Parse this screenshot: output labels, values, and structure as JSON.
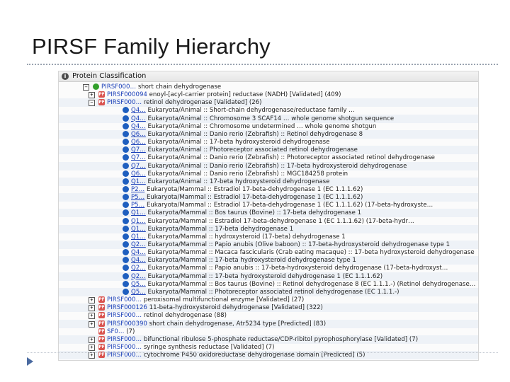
{
  "slide": {
    "title": "PIRSF Family Hierarchy"
  },
  "panel": {
    "header": "Protein Classification"
  },
  "rows": [
    {
      "indent": 1,
      "toggle": "−",
      "badge": "green",
      "badge_text": "",
      "id": "PIRSF000…",
      "text": " short chain dehydrogenase",
      "shaded": false
    },
    {
      "indent": 2,
      "toggle": "+",
      "badge": "pf",
      "badge_text": "PF",
      "id": "PIRSF000094",
      "text": " enoyl-[acyl-carrier protein] reductase (NADH) [Validated] (409)",
      "shaded": false
    },
    {
      "indent": 2,
      "toggle": "−",
      "badge": "pf",
      "badge_text": "PF",
      "id": "PIRSF000…",
      "text": " retinol dehydrogenase [Validated] (26)",
      "shaded": true
    },
    {
      "indent": 3,
      "toggle": "",
      "badge": "sp",
      "badge_text": "",
      "id": "Q4…",
      "text": " Eukaryota/Animal :: Short-chain dehydrogenase/reductase family …",
      "shaded": false
    },
    {
      "indent": 3,
      "toggle": "",
      "badge": "sp",
      "badge_text": "",
      "id": "Q4…",
      "text": " Eukaryota/Animal :: Chromosome 3 SCAF14 … whole genome shotgun sequence",
      "shaded": true
    },
    {
      "indent": 3,
      "toggle": "",
      "badge": "sp",
      "badge_text": "",
      "id": "Q4…",
      "text": " Eukaryota/Animal :: Chromosome undetermined … whole genome shotgun",
      "shaded": false
    },
    {
      "indent": 3,
      "toggle": "",
      "badge": "sp",
      "badge_text": "",
      "id": "Q6…",
      "text": " Eukaryota/Animal :: Danio rerio (Zebrafish) :: Retinol dehydrogenase 8",
      "shaded": true
    },
    {
      "indent": 3,
      "toggle": "",
      "badge": "sp",
      "badge_text": "",
      "id": "Q6…",
      "text": " Eukaryota/Animal :: 17-beta hydroxysteroid dehydrogenase",
      "shaded": false
    },
    {
      "indent": 3,
      "toggle": "",
      "badge": "sp",
      "badge_text": "",
      "id": "Q7…",
      "text": " Eukaryota/Animal :: Photoreceptor associated retinol dehydrogenase",
      "shaded": true
    },
    {
      "indent": 3,
      "toggle": "",
      "badge": "sp",
      "badge_text": "",
      "id": "Q7…",
      "text": " Eukaryota/Animal :: Danio rerio (Zebrafish) :: Photoreceptor associated retinol dehydrogenase",
      "shaded": false
    },
    {
      "indent": 3,
      "toggle": "",
      "badge": "sp",
      "badge_text": "",
      "id": "Q7…",
      "text": " Eukaryota/Animal :: Danio rerio (Zebrafish) :: 17-beta hydroxysteroid dehydrogenase",
      "shaded": true
    },
    {
      "indent": 3,
      "toggle": "",
      "badge": "sp",
      "badge_text": "",
      "id": "Q6…",
      "text": " Eukaryota/Animal :: Danio rerio (Zebrafish) :: MGC184258 protein",
      "shaded": false
    },
    {
      "indent": 3,
      "toggle": "",
      "badge": "sp",
      "badge_text": "",
      "id": "Q1…",
      "text": " Eukaryota/Animal :: 17-beta hydroxysteroid dehydrogenase",
      "shaded": true
    },
    {
      "indent": 3,
      "toggle": "",
      "badge": "sp",
      "badge_text": "",
      "id": "P2…",
      "text": " Eukaryota/Mammal :: Estradiol 17-beta-dehydrogenase 1 (EC 1.1.1.62)",
      "shaded": false
    },
    {
      "indent": 3,
      "toggle": "",
      "badge": "sp",
      "badge_text": "",
      "id": "P5…",
      "text": " Eukaryota/Mammal :: Estradiol 17-beta-dehydrogenase 1 (EC 1.1.1.62)",
      "shaded": true
    },
    {
      "indent": 3,
      "toggle": "",
      "badge": "sp",
      "badge_text": "",
      "id": "P5…",
      "text": " Eukaryota/Mammal :: Estradiol 17-beta-dehydrogenase 1 (EC 1.1.1.62) (17-beta-hydroxyste…",
      "shaded": false
    },
    {
      "indent": 3,
      "toggle": "",
      "badge": "sp",
      "badge_text": "",
      "id": "Q1…",
      "text": " Eukaryota/Mammal :: Bos taurus (Bovine) :: 17-beta dehydrogenase 1",
      "shaded": true
    },
    {
      "indent": 3,
      "toggle": "",
      "badge": "sp",
      "badge_text": "",
      "id": "Q1…",
      "text": " Eukaryota/Mammal :: Estradiol 17-beta-dehydrogenase 1 (EC 1.1.1.62) (17-beta-hydr…",
      "shaded": false
    },
    {
      "indent": 3,
      "toggle": "",
      "badge": "sp",
      "badge_text": "",
      "id": "Q1…",
      "text": " Eukaryota/Mammal :: 17-beta dehydrogenase 1",
      "shaded": true
    },
    {
      "indent": 3,
      "toggle": "",
      "badge": "sp",
      "badge_text": "",
      "id": "Q1…",
      "text": " Eukaryota/Mammal :: hydroxysteroid (17-beta) dehydrogenase 1",
      "shaded": false
    },
    {
      "indent": 3,
      "toggle": "",
      "badge": "sp",
      "badge_text": "",
      "id": "Q2…",
      "text": " Eukaryota/Mammal :: Papio anubis (Olive baboon) :: 17-beta-hydroxysteroid dehydrogenase type 1",
      "shaded": true
    },
    {
      "indent": 3,
      "toggle": "",
      "badge": "sp",
      "badge_text": "",
      "id": "Q4…",
      "text": " Eukaryota/Mammal :: Macaca fascicularis (Crab eating macaque) :: 17-beta hydroxysteroid dehydrogenase",
      "shaded": false
    },
    {
      "indent": 3,
      "toggle": "",
      "badge": "sp",
      "badge_text": "",
      "id": "Q4…",
      "text": " Eukaryota/Mammal :: 17-beta hydroxysteroid dehydrogenase type 1",
      "shaded": true
    },
    {
      "indent": 3,
      "toggle": "",
      "badge": "sp",
      "badge_text": "",
      "id": "Q2…",
      "text": " Eukaryota/Mammal :: Papio anubis :: 17-beta-hydroxysteroid dehydrogenase (17-beta-hydroxyst…",
      "shaded": false
    },
    {
      "indent": 3,
      "toggle": "",
      "badge": "sp",
      "badge_text": "",
      "id": "Q2…",
      "text": " Eukaryota/Mammal :: 17-beta hydroxysteroid dehydrogenase 1 (EC 1.1.1.62)",
      "shaded": true
    },
    {
      "indent": 3,
      "toggle": "",
      "badge": "sp",
      "badge_text": "",
      "id": "Q5…",
      "text": " Eukaryota/Mammal :: Bos taurus (Bovine) :: Retinol dehydrogenase 8 (EC 1.1.1.-) (Retinol dehydrogenase…",
      "shaded": false
    },
    {
      "indent": 3,
      "toggle": "",
      "badge": "sp",
      "badge_text": "",
      "id": "Q5…",
      "text": " Eukaryota/Mammal :: Photoreceptor associated retinol dehydrogenase (EC 1.1.1.-)",
      "shaded": true
    },
    {
      "indent": 2,
      "toggle": "+",
      "badge": "pf",
      "badge_text": "PF",
      "id": "PIRSF000…",
      "text": " peroxisomal multifunctional enzyme [Validated] (27)",
      "shaded": false
    },
    {
      "indent": 2,
      "toggle": "+",
      "badge": "pf",
      "badge_text": "PF",
      "id": "PIRSF000126",
      "text": " 11-beta-hydroxysteroid dehydrogenase [Validated] (322)",
      "shaded": true
    },
    {
      "indent": 2,
      "toggle": "+",
      "badge": "pf",
      "badge_text": "PF",
      "id": "PIRSF000…",
      "text": " retinol dehydrogenase (88)",
      "shaded": false
    },
    {
      "indent": 2,
      "toggle": "+",
      "badge": "pf",
      "badge_text": "PF",
      "id": "PIRSF000390",
      "text": " short chain dehydrogenase, Atr5234 type [Predicted] (83)",
      "shaded": true
    },
    {
      "indent": 2,
      "toggle": "",
      "badge": "pf",
      "badge_text": "PF",
      "id": "SF0…",
      "text": " (7)",
      "shaded": false
    },
    {
      "indent": 2,
      "toggle": "+",
      "badge": "pf",
      "badge_text": "PF",
      "id": "PIRSF000…",
      "text": " bifunctional ribulose 5-phosphate reductase/CDP-ribitol pyrophosphorylase [Validated] (7)",
      "shaded": true
    },
    {
      "indent": 2,
      "toggle": "+",
      "badge": "pf",
      "badge_text": "PF",
      "id": "PIRSF000…",
      "text": " syringe synthesis reductase [Validated] (7)",
      "shaded": false
    },
    {
      "indent": 2,
      "toggle": "+",
      "badge": "pf",
      "badge_text": "PF",
      "id": "PIRSF000…",
      "text": " cytochrome P450 oxidoreductase dehydrogenase domain [Predicted] (5)",
      "shaded": true
    }
  ]
}
